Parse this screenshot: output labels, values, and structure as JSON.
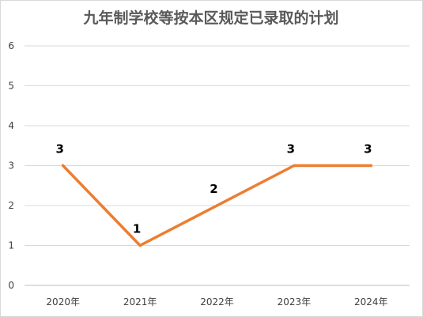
{
  "chart_data": {
    "type": "line",
    "title": "九年制学校等按本区规定已录取的计划",
    "categories": [
      "2020年",
      "2021年",
      "2022年",
      "2023年",
      "2024年"
    ],
    "series": [
      {
        "values": [
          3,
          1,
          2,
          3,
          3
        ],
        "color": "#ED7D31"
      }
    ],
    "data_labels": [
      "3",
      "1",
      "2",
      "3",
      "3"
    ],
    "ylim": [
      0,
      6
    ],
    "yticks": [
      "0",
      "1",
      "2",
      "3",
      "4",
      "5",
      "6"
    ],
    "xlabel": "",
    "ylabel": "",
    "grid": true,
    "legend": "none"
  }
}
